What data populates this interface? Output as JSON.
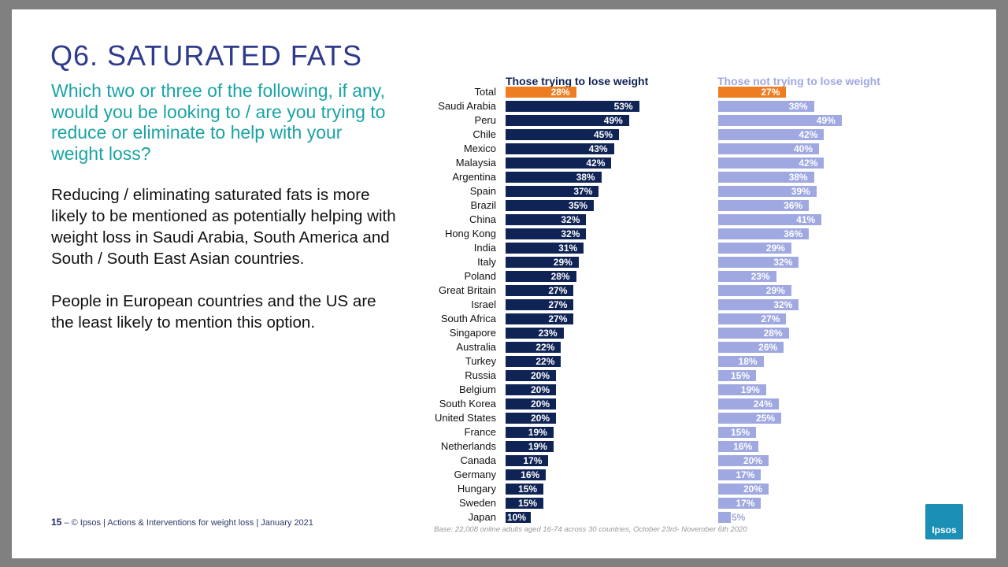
{
  "title": "Q6. SATURATED FATS",
  "question": "Which two or three of the following, if any, would you be looking to / are you trying to reduce or eliminate to help with your weight loss?",
  "body": [
    "Reducing / eliminating saturated fats is more likely to be mentioned as potentially helping with weight loss in Saudi Arabia, South America and South / South East Asian countries.",
    "People in European countries and the US are the least likely to mention this option."
  ],
  "footer": {
    "page": "15",
    "text": "– © Ipsos | Actions & Interventions for weight loss | January 2021"
  },
  "base": "Base: 22,008 online adults aged 16-74 across 30 countries, October 23rd- November 6th 2020",
  "logo": "Ipsos",
  "colors": {
    "dark": "#0f2355",
    "light": "#9fa8e0",
    "total": "#ee7d22"
  },
  "chart_data": {
    "type": "bar",
    "categories": [
      "Total",
      "Saudi Arabia",
      "Peru",
      "Chile",
      "Mexico",
      "Malaysia",
      "Argentina",
      "Spain",
      "Brazil",
      "China",
      "Hong Kong",
      "India",
      "Italy",
      "Poland",
      "Great Britain",
      "Israel",
      "South Africa",
      "Singapore",
      "Australia",
      "Turkey",
      "Russia",
      "Belgium",
      "South Korea",
      "United States",
      "France",
      "Netherlands",
      "Canada",
      "Germany",
      "Hungary",
      "Sweden",
      "Japan"
    ],
    "series": [
      {
        "name": "Those trying to lose weight",
        "values": [
          28,
          53,
          49,
          45,
          43,
          42,
          38,
          37,
          35,
          32,
          32,
          31,
          29,
          28,
          27,
          27,
          27,
          23,
          22,
          22,
          20,
          20,
          20,
          20,
          19,
          19,
          17,
          16,
          15,
          15,
          10
        ]
      },
      {
        "name": "Those not trying to lose weight",
        "values": [
          27,
          38,
          49,
          42,
          40,
          42,
          38,
          39,
          36,
          41,
          36,
          29,
          32,
          23,
          29,
          32,
          27,
          28,
          26,
          18,
          15,
          19,
          24,
          25,
          15,
          16,
          20,
          17,
          20,
          17,
          5
        ]
      }
    ],
    "unit": "%"
  }
}
